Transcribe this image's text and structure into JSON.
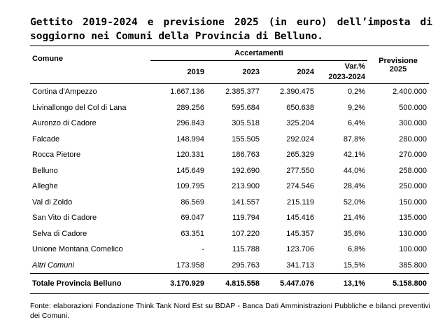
{
  "title": "Gettito 2019-2024 e previsione 2025 (in euro) dell’imposta di soggiorno nei Comuni della Provincia di Belluno.",
  "header": {
    "comune": "Comune",
    "accertamenti": "Accertamenti",
    "y2019": "2019",
    "y2023": "2023",
    "y2024": "2024",
    "var_line1": "Var.%",
    "var_line2": "2023-2024",
    "prev_line1": "Previsione",
    "prev_line2": "2025"
  },
  "rows": [
    {
      "comune": "Cortina d'Ampezzo",
      "y2019": "1.667.136",
      "y2023": "2.385.377",
      "y2024": "2.390.475",
      "var": "0,2%",
      "prev": "2.400.000"
    },
    {
      "comune": "Livinallongo del Col di Lana",
      "y2019": "289.256",
      "y2023": "595.684",
      "y2024": "650.638",
      "var": "9,2%",
      "prev": "500.000"
    },
    {
      "comune": "Auronzo di Cadore",
      "y2019": "296.843",
      "y2023": "305.518",
      "y2024": "325.204",
      "var": "6,4%",
      "prev": "300.000"
    },
    {
      "comune": "Falcade",
      "y2019": "148.994",
      "y2023": "155.505",
      "y2024": "292.024",
      "var": "87,8%",
      "prev": "280.000"
    },
    {
      "comune": "Rocca Pietore",
      "y2019": "120.331",
      "y2023": "186.763",
      "y2024": "265.329",
      "var": "42,1%",
      "prev": "270.000"
    },
    {
      "comune": "Belluno",
      "y2019": "145.649",
      "y2023": "192.690",
      "y2024": "277.550",
      "var": "44,0%",
      "prev": "258.000"
    },
    {
      "comune": "Alleghe",
      "y2019": "109.795",
      "y2023": "213.900",
      "y2024": "274.546",
      "var": "28,4%",
      "prev": "250.000"
    },
    {
      "comune": "Val di Zoldo",
      "y2019": "86.569",
      "y2023": "141.557",
      "y2024": "215.119",
      "var": "52,0%",
      "prev": "150.000"
    },
    {
      "comune": "San Vito di Cadore",
      "y2019": "69.047",
      "y2023": "119.794",
      "y2024": "145.416",
      "var": "21,4%",
      "prev": "135.000"
    },
    {
      "comune": "Selva di Cadore",
      "y2019": "63.351",
      "y2023": "107.220",
      "y2024": "145.357",
      "var": "35,6%",
      "prev": "130.000"
    },
    {
      "comune": "Unione Montana Comelico",
      "y2019": "-",
      "y2023": "115.788",
      "y2024": "123.706",
      "var": "6,8%",
      "prev": "100.000"
    },
    {
      "comune": "Altri Comuni",
      "y2019": "173.958",
      "y2023": "295.763",
      "y2024": "341.713",
      "var": "15,5%",
      "prev": "385.800"
    }
  ],
  "total": {
    "comune": "Totale Provincia Belluno",
    "y2019": "3.170.929",
    "y2023": "4.815.558",
    "y2024": "5.447.076",
    "var": "13,1%",
    "prev": "5.158.800"
  },
  "footer": "Fonte: elaborazioni Fondazione Think Tank Nord Est su BDAP - Banca Dati Amministrazioni Pubbliche e bilanci preventivi dei Comuni."
}
